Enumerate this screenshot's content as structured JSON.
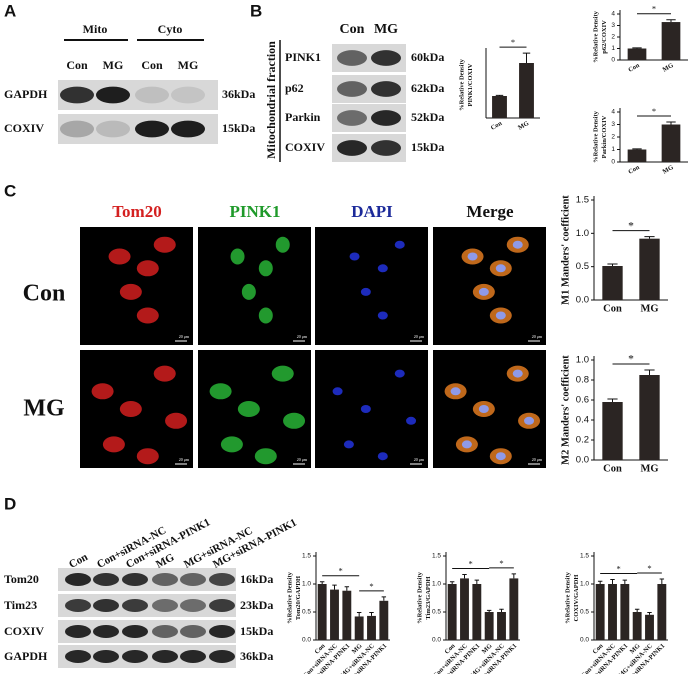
{
  "panels": {
    "A": {
      "label": "A",
      "groups": [
        "Mito",
        "Cyto"
      ],
      "lanes": [
        "Con",
        "MG",
        "Con",
        "MG"
      ],
      "rows": [
        {
          "name": "GAPDH",
          "size": "36kDa"
        },
        {
          "name": "COXIV",
          "size": "15kDa"
        }
      ]
    },
    "B": {
      "label": "B",
      "fraction": "Mitochondrial fraction",
      "lanes": [
        "Con",
        "MG"
      ],
      "rows": [
        {
          "name": "PINK1",
          "size": "60kDa"
        },
        {
          "name": "p62",
          "size": "62kDa"
        },
        {
          "name": "Parkin",
          "size": "52kDa"
        },
        {
          "name": "COXIV",
          "size": "15kDa"
        }
      ]
    },
    "C": {
      "label": "C",
      "channels": [
        "Tom20",
        "PINK1",
        "DAPI",
        "Merge"
      ],
      "rows": [
        "Con",
        "MG"
      ],
      "scale_bar": "20 μm"
    },
    "D": {
      "label": "D",
      "lanes": [
        "Con",
        "Con+siRNA-NC",
        "Con+siRNA-PINK1",
        "MG",
        "MG+siRNA-NC",
        "MG+siRNA-PINK1"
      ],
      "rows": [
        {
          "name": "Tom20",
          "size": "16kDa"
        },
        {
          "name": "Tim23",
          "size": "23kDa"
        },
        {
          "name": "COXIV",
          "size": "15kDa"
        },
        {
          "name": "GAPDH",
          "size": "36kDa"
        }
      ]
    }
  },
  "chart_data": [
    {
      "type": "bar",
      "y_label": [
        "%Relative Density",
        "PINK1/COXIV"
      ],
      "categories": [
        "Con",
        "MG"
      ],
      "values": [
        1.0,
        2.5
      ],
      "errors": [
        0.03,
        0.45
      ],
      "color": "#2b2523",
      "ylim": [
        0,
        3
      ],
      "annotations": [
        "*"
      ]
    },
    {
      "type": "bar",
      "y_label": [
        "%Relative Density",
        "p62/COXIV"
      ],
      "categories": [
        "Con",
        "MG"
      ],
      "values": [
        1.0,
        3.3
      ],
      "errors": [
        0.05,
        0.2
      ],
      "color": "#2b2523",
      "ylim": [
        0,
        4
      ],
      "yticks": [
        0,
        1,
        2,
        3,
        4
      ],
      "annotations": [
        "*"
      ]
    },
    {
      "type": "bar",
      "y_label": [
        "%Relative Density",
        "Parkin/COXIV"
      ],
      "categories": [
        "Con",
        "MG"
      ],
      "values": [
        1.0,
        3.0
      ],
      "errors": [
        0.05,
        0.2
      ],
      "color": "#2b2523",
      "ylim": [
        0,
        4
      ],
      "yticks": [
        0,
        1,
        2,
        3,
        4
      ],
      "annotations": [
        "*"
      ]
    },
    {
      "type": "bar",
      "y_label": [
        "M1 Manders' coefficient"
      ],
      "categories": [
        "Con",
        "MG"
      ],
      "values": [
        0.51,
        0.92
      ],
      "errors": [
        0.03,
        0.03
      ],
      "color": "#2b2523",
      "ylim": [
        0,
        1.5
      ],
      "yticks": [
        {
          "value": 0,
          "label": "0.0"
        },
        {
          "value": 0.5,
          "label": "0.5"
        },
        {
          "value": 1,
          "label": "1.0"
        },
        {
          "value": 1.5,
          "label": "1.5"
        }
      ],
      "annotations": [
        "*"
      ]
    },
    {
      "type": "bar",
      "y_label": [
        "M2 Manders' coefficient"
      ],
      "categories": [
        "Con",
        "MG"
      ],
      "values": [
        0.58,
        0.85
      ],
      "errors": [
        0.03,
        0.05
      ],
      "color": "#2b2523",
      "ylim": [
        0,
        1.0
      ],
      "yticks": [
        {
          "value": 0,
          "label": "0.0"
        },
        {
          "value": 0.2,
          "label": "0.2"
        },
        {
          "value": 0.4,
          "label": "0.4"
        },
        {
          "value": 0.6,
          "label": "0.6"
        },
        {
          "value": 0.8,
          "label": "0.8"
        },
        {
          "value": 1,
          "label": "1.0"
        }
      ],
      "annotations": [
        "*"
      ]
    },
    {
      "type": "bar",
      "y_label": [
        "%Relative Density",
        "Tom20/GAPDH"
      ],
      "categories": [
        "Con",
        "Con+siRNA-NC",
        "Con+siRNA-PINK1",
        "MG",
        "MG+siRNA-NC",
        "MG+siRNA-PINK1"
      ],
      "values": [
        1.0,
        0.9,
        0.88,
        0.42,
        0.43,
        0.7
      ],
      "errors": [
        0.04,
        0.08,
        0.07,
        0.07,
        0.06,
        0.07
      ],
      "color": "#2b2523",
      "ylim": [
        0,
        1.5
      ],
      "yticks": [
        {
          "value": 0,
          "label": "0.0"
        },
        {
          "value": 0.5,
          "label": "0.5"
        },
        {
          "value": 1,
          "label": "1.0"
        },
        {
          "value": 1.5,
          "label": "1.5"
        }
      ],
      "annotations": [
        "*",
        "*"
      ]
    },
    {
      "type": "bar",
      "y_label": [
        "%Relative Density",
        "Tim23/GAPDH"
      ],
      "categories": [
        "Con",
        "Con+siRNA-NC",
        "Con+siRNA-PINK1",
        "MG",
        "MG+siRNA-NC",
        "MG+siRNA-PINK1"
      ],
      "values": [
        1.0,
        1.1,
        1.0,
        0.5,
        0.5,
        1.1
      ],
      "errors": [
        0.04,
        0.07,
        0.07,
        0.03,
        0.05,
        0.08
      ],
      "color": "#2b2523",
      "ylim": [
        0,
        1.5
      ],
      "yticks": [
        {
          "value": 0,
          "label": "0.0"
        },
        {
          "value": 0.5,
          "label": "0.5"
        },
        {
          "value": 1,
          "label": "1.0"
        },
        {
          "value": 1.5,
          "label": "1.5"
        }
      ],
      "annotations": [
        "*",
        "*"
      ]
    },
    {
      "type": "bar",
      "y_label": [
        "%Relative Density",
        "COXIV/GAPDH"
      ],
      "categories": [
        "Con",
        "Con+siRNA-NC",
        "Con+siRNA-PINK1",
        "MG",
        "MG+siRNA-NC",
        "MG+siRNA-PINK1"
      ],
      "values": [
        1.0,
        1.0,
        1.0,
        0.5,
        0.45,
        1.0
      ],
      "errors": [
        0.05,
        0.08,
        0.07,
        0.05,
        0.04,
        0.09
      ],
      "color": "#2b2523",
      "ylim": [
        0,
        1.5
      ],
      "yticks": [
        {
          "value": 0,
          "label": "0.0"
        },
        {
          "value": 0.5,
          "label": "0.5"
        },
        {
          "value": 1,
          "label": "1.0"
        },
        {
          "value": 1.5,
          "label": "1.5"
        }
      ],
      "annotations": [
        "*",
        "*"
      ]
    }
  ]
}
